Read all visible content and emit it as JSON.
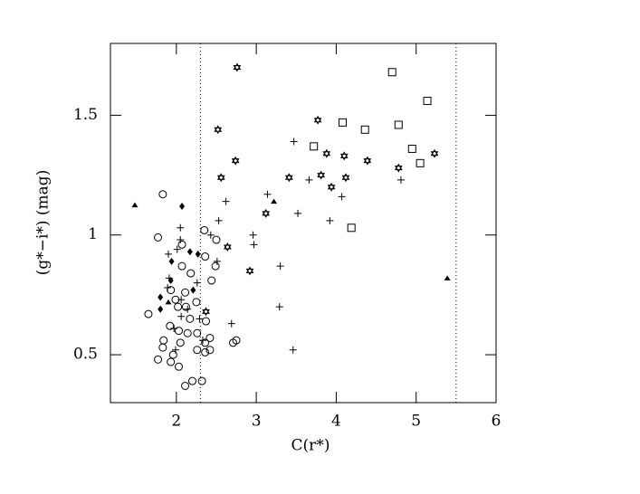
{
  "chart_data": {
    "type": "scatter",
    "x_label": "C(r*)",
    "y_label": "(g*−i*)  (mag)",
    "xlim": [
      1.175,
      6
    ],
    "ylim": [
      0.3,
      1.8
    ],
    "xticks": [
      2,
      3,
      4,
      5,
      6
    ],
    "yticks": [
      0.5,
      1,
      1.5
    ],
    "vlines": [
      2.3,
      5.5
    ],
    "series": [
      {
        "marker": "triangle",
        "color": "#000000",
        "x": [
          1.48,
          3.22,
          5.39,
          1.9
        ],
        "values": [
          1.125,
          1.14,
          0.82,
          0.72
        ]
      },
      {
        "marker": "diamond",
        "color": "#000000",
        "x": [
          2.07,
          2.17,
          2.27,
          1.94,
          1.93,
          1.8,
          1.8,
          2.21
        ],
        "values": [
          1.12,
          0.93,
          0.92,
          0.89,
          0.81,
          0.74,
          0.69,
          0.77
        ]
      },
      {
        "marker": "square",
        "color": "#000000",
        "x": [
          4.7,
          5.14,
          4.08,
          4.78,
          4.36,
          3.72,
          4.95,
          5.05,
          4.19
        ],
        "values": [
          1.68,
          1.56,
          1.47,
          1.46,
          1.44,
          1.37,
          1.36,
          1.3,
          1.03
        ]
      },
      {
        "marker": "star",
        "color": "#000000",
        "x": [
          2.76,
          2.52,
          3.77,
          2.74,
          2.56,
          3.41,
          3.81,
          3.88,
          4.1,
          3.94,
          4.12,
          4.39,
          4.78,
          5.23,
          3.12,
          2.64,
          2.92,
          2.37
        ],
        "values": [
          1.7,
          1.44,
          1.48,
          1.31,
          1.24,
          1.24,
          1.25,
          1.34,
          1.33,
          1.2,
          1.24,
          1.31,
          1.28,
          1.34,
          1.09,
          0.95,
          0.85,
          0.68
        ]
      },
      {
        "marker": "plus",
        "color": "#000000",
        "x": [
          3.47,
          3.14,
          3.52,
          2.62,
          2.53,
          2.96,
          2.97,
          3.66,
          4.07,
          3.92,
          4.81,
          3.3,
          3.29,
          2.69,
          3.46,
          2.51,
          2.05,
          2.05,
          1.9,
          2.01,
          1.89,
          1.91,
          2.06,
          2.14,
          2.06,
          2.26,
          1.97,
          2.29,
          2.33,
          1.99,
          2.43
        ],
        "values": [
          1.39,
          1.17,
          1.09,
          1.14,
          1.06,
          1.0,
          0.96,
          1.23,
          1.16,
          1.06,
          1.23,
          0.87,
          0.7,
          0.63,
          0.52,
          0.89,
          1.03,
          0.98,
          0.92,
          0.94,
          0.78,
          0.82,
          0.73,
          0.69,
          0.66,
          0.8,
          0.61,
          0.65,
          0.56,
          0.52,
          1.0
        ]
      },
      {
        "marker": "circle",
        "color": "#000000",
        "x": [
          1.83,
          1.77,
          1.65,
          2.07,
          2.35,
          2.5,
          2.36,
          2.49,
          2.44,
          2.07,
          2.18,
          1.93,
          1.99,
          2.11,
          2.25,
          2.02,
          2.12,
          2.17,
          2.37,
          1.92,
          2.03,
          2.26,
          2.36,
          2.42,
          1.84,
          1.83,
          2.05,
          1.96,
          2.14,
          2.26,
          2.36,
          2.42,
          1.77,
          1.93,
          2.03,
          2.2,
          2.32,
          2.11,
          2.75,
          2.71
        ],
        "values": [
          1.17,
          0.99,
          0.67,
          0.96,
          1.02,
          0.98,
          0.91,
          0.87,
          0.81,
          0.87,
          0.84,
          0.77,
          0.73,
          0.76,
          0.72,
          0.7,
          0.7,
          0.65,
          0.64,
          0.62,
          0.6,
          0.59,
          0.55,
          0.57,
          0.56,
          0.53,
          0.55,
          0.5,
          0.59,
          0.52,
          0.51,
          0.52,
          0.48,
          0.47,
          0.45,
          0.39,
          0.39,
          0.37,
          0.56,
          0.55
        ]
      }
    ]
  }
}
